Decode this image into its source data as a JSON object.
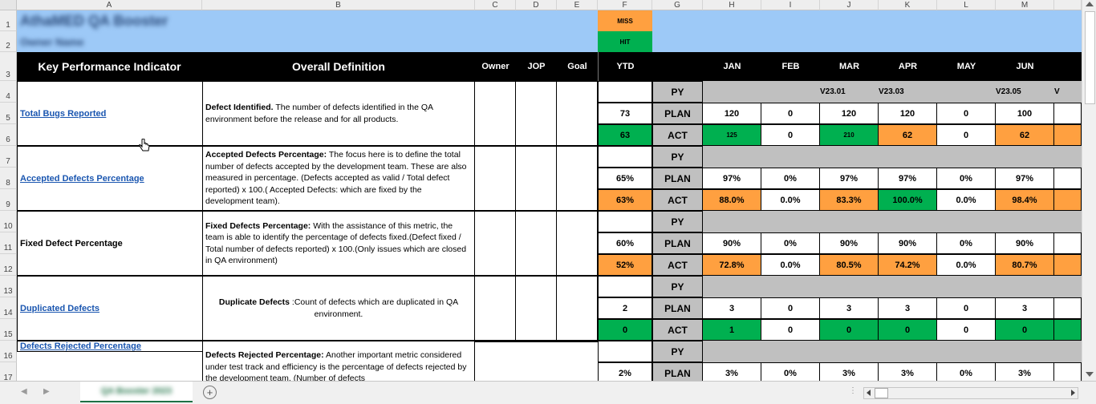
{
  "columns": [
    "A",
    "B",
    "C",
    "D",
    "E",
    "F",
    "G",
    "H",
    "I",
    "J",
    "K",
    "L",
    "M",
    ""
  ],
  "rows": [
    "1",
    "2",
    "3",
    "4",
    "5",
    "6",
    "7",
    "8",
    "9",
    "10",
    "11",
    "12",
    "13",
    "14",
    "15",
    "16",
    "17"
  ],
  "title_blurred": "AthaMED QA Booster",
  "subtitle_blurred": "Owner Name",
  "legend": {
    "miss": "MISS",
    "hit": "HIT",
    "miss_color": "#ffa040",
    "hit_color": "#00b050"
  },
  "header": {
    "kpi": "Key Performance Indicator",
    "definition": "Overall Definition",
    "owner": "Owner",
    "jop": "JOP",
    "goal": "Goal",
    "ytd": "YTD",
    "months": [
      "JAN",
      "FEB",
      "MAR",
      "APR",
      "MAY",
      "JUN"
    ]
  },
  "versions": {
    "mar": "V23.01",
    "apr": "V23.03",
    "jun": "V23.05",
    "next": "V"
  },
  "row_labels": {
    "py": "PY",
    "plan": "PLAN",
    "act": "ACT"
  },
  "kpis": [
    {
      "name": "Total Bugs Reported",
      "link": true,
      "def_bold": "Defect Identified.",
      "def_text": " The number of defects identified in the QA environment before the release and for all products.",
      "ytd_plan": "73",
      "ytd_act": "63",
      "ytd_act_status": "hit",
      "plan": [
        "120",
        "0",
        "120",
        "120",
        "0",
        "100"
      ],
      "act": [
        "125",
        "0",
        "210",
        "62",
        "0",
        "62"
      ],
      "act_status": [
        "hit",
        "none",
        "hit",
        "miss",
        "none",
        "miss"
      ]
    },
    {
      "name": "Accepted Defects Percentage",
      "link": true,
      "def_bold": "Accepted Defects Percentage:",
      "def_text": " The focus here is to define the total number of defects accepted by the development team. These are also measured in percentage. (Defects accepted as valid / Total defect reported) x 100.( Accepted Defects: which are fixed by the development team).",
      "ytd_plan": "65%",
      "ytd_act": "63%",
      "ytd_act_status": "miss",
      "plan": [
        "97%",
        "0%",
        "97%",
        "97%",
        "0%",
        "97%"
      ],
      "act": [
        "88.0%",
        "0.0%",
        "83.3%",
        "100.0%",
        "0.0%",
        "98.4%"
      ],
      "act_status": [
        "miss",
        "none",
        "miss",
        "hit",
        "none",
        "miss"
      ]
    },
    {
      "name": "Fixed Defect Percentage",
      "link": false,
      "def_bold": "Fixed Defects Percentage:",
      "def_text": " With the assistance of this metric, the team is able to identify the percentage of defects fixed.(Defect fixed / Total number of defects reported) x 100.(Only issues which are closed in QA environment)",
      "ytd_plan": "60%",
      "ytd_act": "52%",
      "ytd_act_status": "miss",
      "plan": [
        "90%",
        "0%",
        "90%",
        "90%",
        "0%",
        "90%"
      ],
      "act": [
        "72.8%",
        "0.0%",
        "80.5%",
        "74.2%",
        "0.0%",
        "80.7%"
      ],
      "act_status": [
        "miss",
        "none",
        "miss",
        "miss",
        "none",
        "miss"
      ]
    },
    {
      "name": "Duplicated Defects",
      "link": true,
      "def_bold": "Duplicate Defects",
      "def_text": " :Count of defects which are duplicated in QA environment.",
      "ytd_plan": "2",
      "ytd_act": "0",
      "ytd_act_status": "hit",
      "plan": [
        "3",
        "0",
        "3",
        "3",
        "0",
        "3"
      ],
      "act": [
        "1",
        "0",
        "0",
        "0",
        "0",
        "0"
      ],
      "act_status": [
        "hit",
        "none",
        "hit",
        "hit",
        "none",
        "hit"
      ]
    },
    {
      "name": "Defects Rejected Percentage",
      "link": true,
      "def_bold": "Defects Rejected Percentage:",
      "def_text": " Another important metric considered under test track and efficiency is the percentage of defects rejected by the development team. (Number of defects",
      "ytd_plan": "2%",
      "plan": [
        "3%",
        "0%",
        "3%",
        "3%",
        "0%",
        "3%"
      ]
    }
  ],
  "sheet_tab": "QA Booster 2023"
}
